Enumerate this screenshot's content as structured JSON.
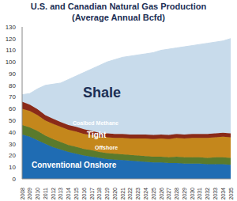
{
  "chart_data": {
    "type": "area",
    "title": "U.S. and Canadian Natural Gas Production",
    "subtitle": "(Average Annual Bcfd)",
    "stacked": true,
    "grid": false,
    "categories": [
      "2008",
      "2009",
      "2010",
      "2011",
      "2012",
      "2013",
      "2014",
      "2015",
      "2016",
      "2017",
      "2018",
      "2019",
      "2020",
      "2021",
      "2022",
      "2023",
      "2024",
      "2025",
      "2026",
      "2027",
      "2028",
      "2029",
      "2030",
      "2031",
      "2032",
      "2033",
      "2034",
      "2035"
    ],
    "ylim": [
      0,
      130
    ],
    "yticks": [
      0,
      10,
      20,
      30,
      40,
      50,
      60,
      70,
      80,
      90,
      100,
      110,
      120,
      130
    ],
    "series": [
      {
        "name": "Conventional Onshore",
        "color": "#1f6cb3",
        "values": [
          38,
          36,
          33,
          30,
          27,
          25,
          23,
          21.5,
          20,
          19,
          18,
          17,
          16.5,
          16,
          15.5,
          15,
          14.5,
          14,
          14,
          13.5,
          13.5,
          13,
          13,
          13,
          12.5,
          12.5,
          12.5,
          12
        ]
      },
      {
        "name": "Offshore",
        "color": "#5a7a2c",
        "values": [
          8,
          8,
          8,
          7,
          7,
          6.5,
          6,
          6,
          5.5,
          5.5,
          5,
          5,
          5,
          5,
          5,
          5,
          5,
          5,
          5,
          5,
          5.5,
          5.5,
          5.5,
          5.5,
          5.5,
          6,
          6,
          6
        ]
      },
      {
        "name": "Tight",
        "color": "#c4871c",
        "values": [
          14,
          14,
          13.5,
          13,
          13,
          13,
          13,
          13,
          13,
          13,
          13,
          13.5,
          13.5,
          14,
          14,
          14.5,
          15,
          15,
          15.5,
          15.5,
          16,
          16,
          16.5,
          16.5,
          17,
          17,
          17.5,
          17.5
        ]
      },
      {
        "name": "Coalbed Methane",
        "color": "#8a2a18",
        "values": [
          6,
          5.5,
          5,
          4.5,
          4.5,
          4,
          4,
          4,
          4,
          3.5,
          3.5,
          3.5,
          3.5,
          3.5,
          3.5,
          3.5,
          3.5,
          3.5,
          3.5,
          3.5,
          3.5,
          3.5,
          3.5,
          3.5,
          3.5,
          3.5,
          3.5,
          3.5
        ]
      },
      {
        "name": "Shale",
        "color": "#c8dbeb",
        "values": [
          6,
          9.5,
          17.5,
          25.5,
          29.5,
          33.5,
          39,
          43.5,
          48.5,
          53,
          57.5,
          61,
          63.5,
          65.5,
          67,
          68,
          69,
          70.5,
          72,
          73.5,
          73.5,
          75,
          75.5,
          76.5,
          77.5,
          78,
          78.5,
          81
        ]
      }
    ]
  }
}
